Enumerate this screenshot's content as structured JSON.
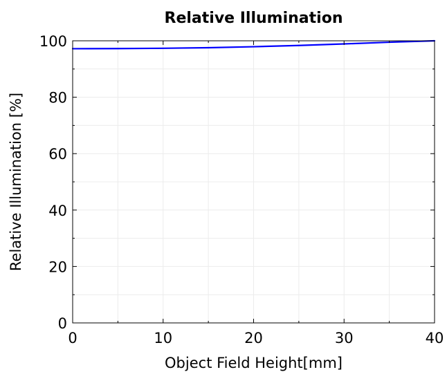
{
  "chart_data": {
    "type": "line",
    "title": "Relative Illumination",
    "xlabel": "Object Field Height[mm]",
    "ylabel": "Relative Illumination [%]",
    "xlim": [
      0,
      40
    ],
    "ylim": [
      0,
      100
    ],
    "xticks": [
      0,
      10,
      20,
      30,
      40
    ],
    "yticks": [
      0,
      20,
      40,
      60,
      80,
      100
    ],
    "grid": true,
    "series": [
      {
        "color": "#0000ff",
        "x": [
          0,
          5,
          10,
          15,
          20,
          25,
          30,
          35,
          40
        ],
        "y": [
          97.2,
          97.25,
          97.35,
          97.55,
          97.9,
          98.35,
          98.9,
          99.5,
          100
        ]
      }
    ]
  }
}
